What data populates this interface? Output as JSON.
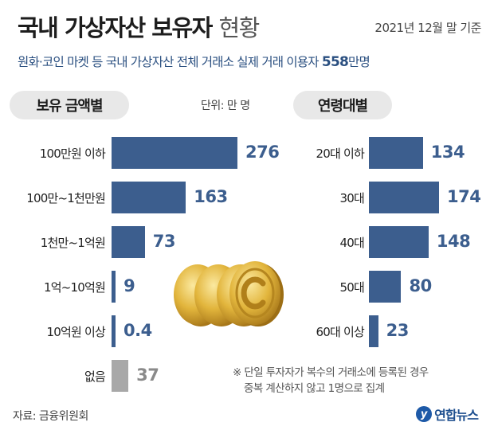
{
  "title": {
    "bold": "국내 가상자산 보유자",
    "light": "현황"
  },
  "date": "2021년 12월 말 기준",
  "subtitle": {
    "text": "원화·코인 마켓 등 국내 가상자산 전체 거래소 실제 거래 이용자",
    "number": "558",
    "suffix": "만명"
  },
  "unit": "단위: 만 명",
  "colors": {
    "bar": "#3c5e8e",
    "gray_bar": "#a8a8a8",
    "gray_value": "#8a8a8a"
  },
  "chart_data": [
    {
      "type": "bar",
      "orientation": "horizontal",
      "title": "보유 금액별",
      "categories": [
        "100만원 이하",
        "100만~1천만원",
        "1천만~1억원",
        "1억~10억원",
        "10억원 이상",
        "없음"
      ],
      "values": [
        276,
        163,
        73,
        9,
        0.4,
        37
      ],
      "value_labels": [
        "276",
        "163",
        "73",
        "9",
        "0.4",
        "37"
      ],
      "unit": "만 명"
    },
    {
      "type": "bar",
      "orientation": "horizontal",
      "title": "연령대별",
      "categories": [
        "20대 이하",
        "30대",
        "40대",
        "50대",
        "60대 이상"
      ],
      "values": [
        134,
        174,
        148,
        80,
        23
      ],
      "value_labels": [
        "134",
        "174",
        "148",
        "80",
        "23"
      ],
      "unit": "만 명"
    }
  ],
  "footnote": [
    "※ 단일 투자자가 복수의 거래소에 등록된 경우",
    "중복 계산하지 않고 1명으로 집계"
  ],
  "source": "자료: 금융위원회",
  "logo": {
    "mark": "y",
    "text": "연합뉴스"
  },
  "coin_icon": "coin-stack-icon"
}
